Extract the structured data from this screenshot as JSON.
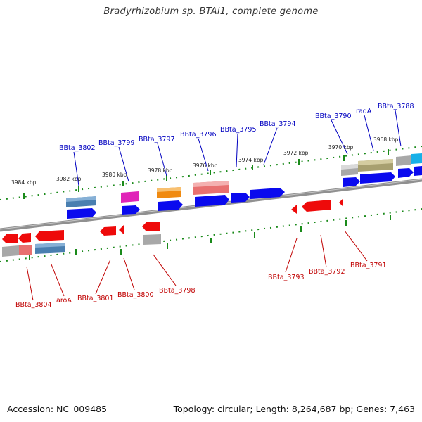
{
  "title": "Bradyrhizobium sp. BTAi1, complete genome",
  "footer": {
    "accession": "Accession: NC_009485",
    "summary": "Topology: circular; Length: 8,264,687 bp; Genes: 7,463"
  },
  "colors": {
    "backbone": "#8a8a8a",
    "tick": "#1a8a1a",
    "top_labels": "#0000c0",
    "bottom_labels": "#c00000"
  },
  "scale_labels": [
    "3984 kbp",
    "3982 kbp",
    "3980 kbp",
    "3978 kbp",
    "3976 kbp",
    "3974 kbp",
    "3972 kbp",
    "3970 kbp",
    "3968 kbp"
  ],
  "top_gene_labels": [
    "BBta_3802",
    "BBta_3799",
    "BBta_3797",
    "BBta_3796",
    "BBta_3795",
    "BBta_3794",
    "BBta_3790",
    "radA",
    "BBta_3788"
  ],
  "bottom_gene_labels": [
    "BBta_3804",
    "aroA",
    "BBta_3801",
    "BBta_3800",
    "BBta_3798",
    "BBta_3793",
    "BBta_3792",
    "BBta_3791"
  ]
}
